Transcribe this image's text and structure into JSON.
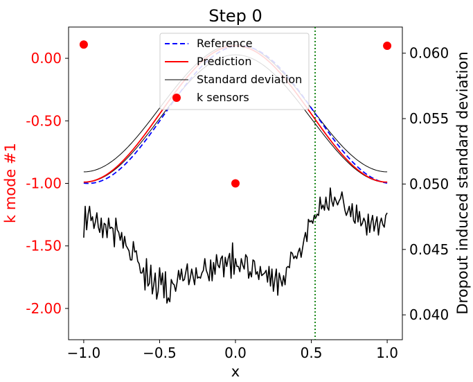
{
  "chart_data": {
    "type": "line",
    "title": "Step 0",
    "xlabel": "x",
    "ylabel_left": "k mode #1",
    "ylabel_right": "Dropout induced standard deviation",
    "xlim": [
      -1.1,
      1.1
    ],
    "ylim_left": [
      -2.25,
      0.25
    ],
    "ylim_right": [
      0.0381,
      0.062
    ],
    "x_ticks": [
      -1.0,
      -0.5,
      0.0,
      0.5,
      1.0
    ],
    "x_tick_labels": [
      "−1.0",
      "−0.5",
      "0.0",
      "0.5",
      "1.0"
    ],
    "y_ticks_left": [
      0.0,
      -0.5,
      -1.0,
      -1.5,
      -2.0
    ],
    "y_tick_labels_left": [
      "0.00",
      "-0.50",
      "-1.00",
      "-1.50",
      "-2.00"
    ],
    "y_ticks_right": [
      0.06,
      0.055,
      0.05,
      0.045,
      0.04
    ],
    "y_tick_labels_right": [
      "0.060",
      "0.055",
      "0.050",
      "0.045",
      "0.040"
    ],
    "vline_x": 0.525,
    "legend": {
      "placement": "upper center",
      "entries": [
        "Reference",
        "Prediction",
        "Standard deviation",
        "k sensors"
      ]
    },
    "sensors": [
      {
        "x": -1.0,
        "y": 0.11
      },
      {
        "x": 0.0,
        "y": -1.0
      },
      {
        "x": 1.0,
        "y": 0.1
      }
    ],
    "curves": {
      "reference": {
        "center": -0.45,
        "amplitude": 0.55,
        "x_shift": 0.03
      },
      "prediction": {
        "center": -0.445,
        "amplitude": 0.545,
        "x_shift": 0.0
      },
      "std_band": {
        "center": -0.44,
        "amplitude": 0.51,
        "x_shift": 0.0,
        "half_width": 0.042
      }
    },
    "std_series": {
      "x_start": -1.0,
      "x_end": 1.0,
      "values": [
        0.0459,
        0.0483,
        0.0465,
        0.0477,
        0.0483,
        0.0472,
        0.0475,
        0.0466,
        0.0471,
        0.0478,
        0.0467,
        0.0463,
        0.0474,
        0.0459,
        0.047,
        0.0469,
        0.0459,
        0.0474,
        0.0466,
        0.0467,
        0.0466,
        0.0452,
        0.0474,
        0.0465,
        0.0463,
        0.0457,
        0.0463,
        0.0451,
        0.046,
        0.0453,
        0.0451,
        0.0449,
        0.0442,
        0.0442,
        0.0456,
        0.0448,
        0.0449,
        0.0441,
        0.0439,
        0.0432,
        0.0432,
        0.0436,
        0.0419,
        0.0443,
        0.0422,
        0.0424,
        0.0438,
        0.0416,
        0.0423,
        0.0432,
        0.0412,
        0.0418,
        0.0436,
        0.0423,
        0.0432,
        0.0413,
        0.0433,
        0.0409,
        0.0413,
        0.041,
        0.0427,
        0.0424,
        0.0423,
        0.0418,
        0.0425,
        0.0434,
        0.0427,
        0.0435,
        0.0426,
        0.0427,
        0.0433,
        0.0439,
        0.0423,
        0.0428,
        0.0435,
        0.0429,
        0.0423,
        0.0436,
        0.0428,
        0.0429,
        0.0428,
        0.0432,
        0.0434,
        0.0443,
        0.0434,
        0.0431,
        0.0426,
        0.0442,
        0.0426,
        0.044,
        0.0431,
        0.0446,
        0.0438,
        0.0436,
        0.0443,
        0.0445,
        0.0429,
        0.0444,
        0.0437,
        0.0443,
        0.0447,
        0.0428,
        0.0455,
        0.0431,
        0.0443,
        0.0437,
        0.0437,
        0.0433,
        0.0443,
        0.0438,
        0.0435,
        0.0446,
        0.0444,
        0.0428,
        0.0433,
        0.0429,
        0.0442,
        0.0441,
        0.0431,
        0.0433,
        0.0427,
        0.0437,
        0.043,
        0.0431,
        0.0432,
        0.0434,
        0.0425,
        0.0437,
        0.0422,
        0.0435,
        0.0418,
        0.0427,
        0.0435,
        0.0415,
        0.0432,
        0.0427,
        0.0422,
        0.043,
        0.0423,
        0.0436,
        0.0437,
        0.0436,
        0.0448,
        0.0447,
        0.0443,
        0.0445,
        0.0443,
        0.0448,
        0.0451,
        0.0444,
        0.0451,
        0.0458,
        0.0463,
        0.0456,
        0.0473,
        0.0471,
        0.0472,
        0.047,
        0.0476,
        0.0474,
        0.0477,
        0.0476,
        0.049,
        0.0481,
        0.0484,
        0.048,
        0.049,
        0.0482,
        0.048,
        0.0497,
        0.0487,
        0.0483,
        0.049,
        0.0487,
        0.0484,
        0.0487,
        0.0489,
        0.0494,
        0.0487,
        0.048,
        0.0476,
        0.0479,
        0.0483,
        0.0475,
        0.0485,
        0.0472,
        0.047,
        0.0484,
        0.0471,
        0.0479,
        0.0468,
        0.047,
        0.0474,
        0.0471,
        0.0461,
        0.0477,
        0.0463,
        0.0471,
        0.0476,
        0.0464,
        0.047,
        0.0475,
        0.0461,
        0.047,
        0.0474,
        0.0469,
        0.0467,
        0.0476,
        0.0478
      ]
    }
  }
}
